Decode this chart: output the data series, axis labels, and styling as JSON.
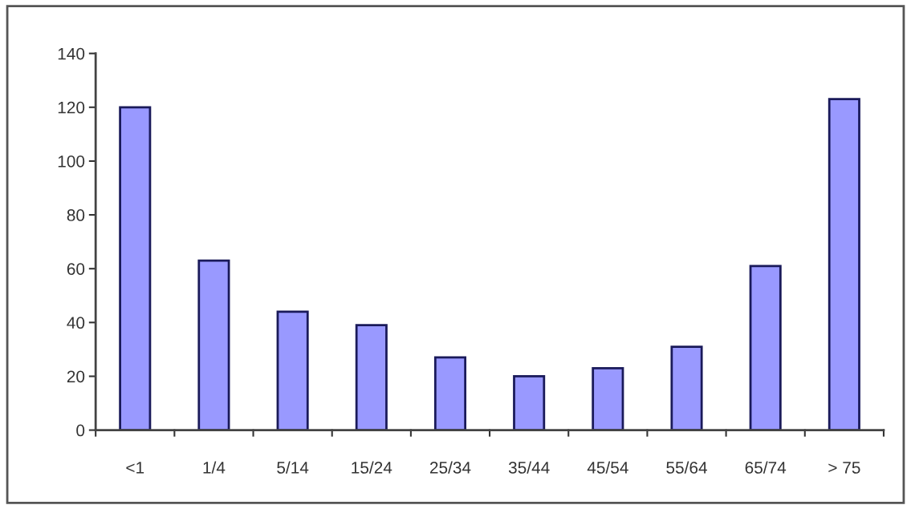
{
  "chart_data": {
    "type": "bar",
    "categories": [
      "<1",
      "1/4",
      "5/14",
      "15/24",
      "25/34",
      "35/44",
      "45/54",
      "55/64",
      "65/74",
      "> 75"
    ],
    "values": [
      120,
      63,
      44,
      39,
      27,
      20,
      23,
      31,
      61,
      123
    ],
    "color": "#9999ff",
    "ylim": [
      0,
      140
    ],
    "yticks": [
      0,
      20,
      40,
      60,
      80,
      100,
      120,
      140
    ],
    "grid": false,
    "legend": false
  }
}
